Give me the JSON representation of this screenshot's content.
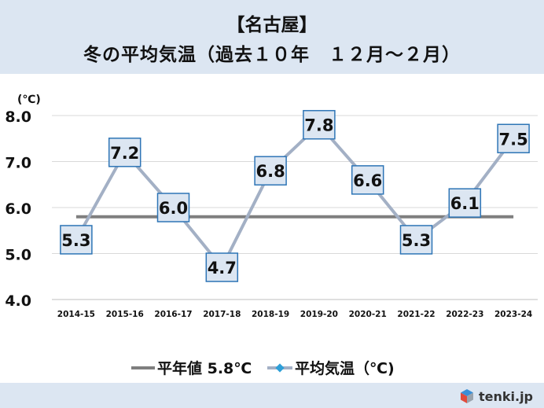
{
  "header": {
    "title_line1": "【名古屋】",
    "title_line2": "冬の平均気温（過去１０年　１２月～２月）"
  },
  "chart_data": {
    "type": "line",
    "ylabel": "(℃)",
    "ylim": [
      4.0,
      8.0
    ],
    "yticks": [
      "4.0",
      "5.0",
      "6.0",
      "7.0",
      "8.0"
    ],
    "categories": [
      "2014-15",
      "2015-16",
      "2016-17",
      "2017-18",
      "2018-19",
      "2019-20",
      "2020-21",
      "2021-22",
      "2022-23",
      "2023-24"
    ],
    "series": [
      {
        "name": "平均気温（℃)",
        "values": [
          5.3,
          7.2,
          6.0,
          4.7,
          6.8,
          7.8,
          6.6,
          5.3,
          6.1,
          7.5
        ],
        "labels": [
          "5.3",
          "7.2",
          "6.0",
          "4.7",
          "6.8",
          "7.8",
          "6.6",
          "5.3",
          "6.1",
          "7.5"
        ],
        "color": "#a3b0c5"
      }
    ],
    "reference": {
      "name": "平年値 5.8℃",
      "value": 5.8,
      "color": "#7f7f7f"
    },
    "grid": true,
    "legend_position": "bottom"
  },
  "legend": {
    "reference_label": "平年値 5.8℃",
    "series_label": "平均気温（℃)"
  },
  "footer": {
    "logo_text": "tenki.jp"
  },
  "colors": {
    "header_bg": "#dce6f2",
    "label_box_bg": "#dce6f2",
    "label_box_border": "#2e75b6",
    "series_line": "#a3b0c5",
    "reference_line": "#7f7f7f",
    "legend_marker": "#2e9fd8"
  }
}
